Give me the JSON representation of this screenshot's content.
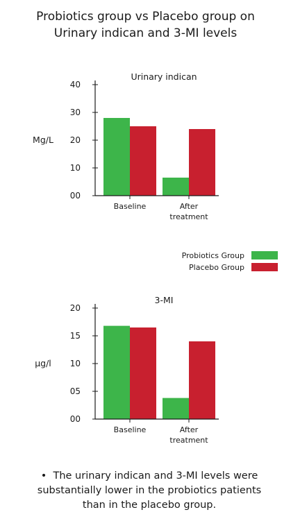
{
  "title_line1": "Probiotics group vs Placebo group on",
  "title_line2": "Urinary indican and 3-MI levels",
  "colors": {
    "probiotics": "#3db54a",
    "placebo": "#c8202f"
  },
  "legend": {
    "probiotics": "Probiotics Group",
    "placebo": "Placebo Group"
  },
  "note": "The urinary indican and 3-MI levels were substantially lower in the probiotics patients than in the placebo group.",
  "chart_data": [
    {
      "type": "bar",
      "title": "Urinary indican",
      "ylabel": "Mg/L",
      "ylim": [
        0,
        40
      ],
      "yticks": [
        "00",
        "10",
        "20",
        "30",
        "40"
      ],
      "categories": [
        [
          "Baseline"
        ],
        [
          "After",
          "treatment"
        ]
      ],
      "series": [
        {
          "name": "Probiotics Group",
          "values": [
            28,
            6.5
          ]
        },
        {
          "name": "Placebo Group",
          "values": [
            25,
            24
          ]
        }
      ]
    },
    {
      "type": "bar",
      "title": "3-MI",
      "ylabel": "µg/l",
      "ylim": [
        0,
        20
      ],
      "yticks": [
        "00",
        "05",
        "10",
        "15",
        "20"
      ],
      "categories": [
        [
          "Baseline"
        ],
        [
          "After",
          "treatment"
        ]
      ],
      "series": [
        {
          "name": "Probiotics Group",
          "values": [
            16.8,
            3.8
          ]
        },
        {
          "name": "Placebo Group",
          "values": [
            16.5,
            14
          ]
        }
      ]
    }
  ]
}
